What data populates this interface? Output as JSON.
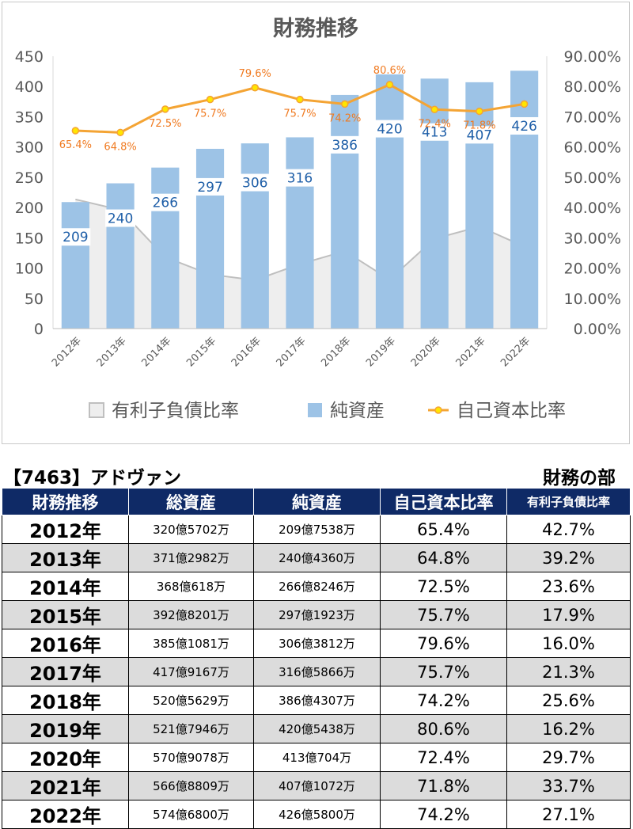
{
  "chart_data": {
    "type": "bar",
    "title": "財務推移",
    "categories": [
      "2012年",
      "2013年",
      "2014年",
      "2015年",
      "2016年",
      "2017年",
      "2018年",
      "2019年",
      "2020年",
      "2021年",
      "2022年"
    ],
    "series": [
      {
        "name": "有利子負債比率",
        "kind": "area",
        "axis": "right",
        "values": [
          42.7,
          39.2,
          23.6,
          17.9,
          16.0,
          21.3,
          25.6,
          16.2,
          29.7,
          33.7,
          27.1
        ]
      },
      {
        "name": "純資産",
        "kind": "bar",
        "axis": "left",
        "values": [
          209,
          240,
          266,
          297,
          306,
          316,
          386,
          420,
          413,
          407,
          426
        ],
        "labels": [
          "209",
          "240",
          "266",
          "297",
          "306",
          "316",
          "386",
          "420",
          "413",
          "407",
          "426"
        ]
      },
      {
        "name": "自己資本比率",
        "kind": "line",
        "axis": "right",
        "values": [
          65.4,
          64.8,
          72.5,
          75.7,
          79.6,
          75.7,
          74.2,
          80.6,
          72.4,
          71.8,
          74.2
        ],
        "labels": [
          "65.4%",
          "64.8%",
          "72.5%",
          "75.7%",
          "79.6%",
          "75.7%",
          "74.2%",
          "80.6%",
          "72.4%",
          "71.8%",
          ""
        ]
      }
    ],
    "ylim": [
      0,
      450
    ],
    "yticks": [
      "0",
      "50",
      "100",
      "150",
      "200",
      "250",
      "300",
      "350",
      "400",
      "450"
    ],
    "y2lim": [
      0,
      90
    ],
    "y2ticks": [
      "0.00%",
      "10.00%",
      "20.00%",
      "30.00%",
      "40.00%",
      "50.00%",
      "60.00%",
      "70.00%",
      "80.00%",
      "90.00%"
    ],
    "legend_position": "bottom",
    "colors": {
      "bar": "#9dc3e6",
      "line": "#f4a434",
      "marker": "#ffe600",
      "area_fill": "#eeeeee",
      "area_line": "#bfbfbf",
      "bar_label": "#1f5fa8",
      "line_label": "#f07a20",
      "axis_text": "#595959"
    }
  },
  "table": {
    "company": "【7463】アドヴァン",
    "section": "財務の部",
    "headers": [
      "財務推移",
      "総資産",
      "純資産",
      "自己資本比率",
      "有利子負債比率"
    ],
    "rows": [
      [
        "2012年",
        "320億5702万",
        "209億7538万",
        "65.4%",
        "42.7%"
      ],
      [
        "2013年",
        "371億2982万",
        "240億4360万",
        "64.8%",
        "39.2%"
      ],
      [
        "2014年",
        "368億618万",
        "266億8246万",
        "72.5%",
        "23.6%"
      ],
      [
        "2015年",
        "392億8201万",
        "297億1923万",
        "75.7%",
        "17.9%"
      ],
      [
        "2016年",
        "385億1081万",
        "306億3812万",
        "79.6%",
        "16.0%"
      ],
      [
        "2017年",
        "417億9167万",
        "316億5866万",
        "75.7%",
        "21.3%"
      ],
      [
        "2018年",
        "520億5629万",
        "386億4307万",
        "74.2%",
        "25.6%"
      ],
      [
        "2019年",
        "521億7946万",
        "420億5438万",
        "80.6%",
        "16.2%"
      ],
      [
        "2020年",
        "570億9078万",
        "413億704万",
        "72.4%",
        "29.7%"
      ],
      [
        "2021年",
        "566億8809万",
        "407億1072万",
        "71.8%",
        "33.7%"
      ],
      [
        "2022年",
        "574億6800万",
        "426億5800万",
        "74.2%",
        "27.1%"
      ]
    ]
  }
}
